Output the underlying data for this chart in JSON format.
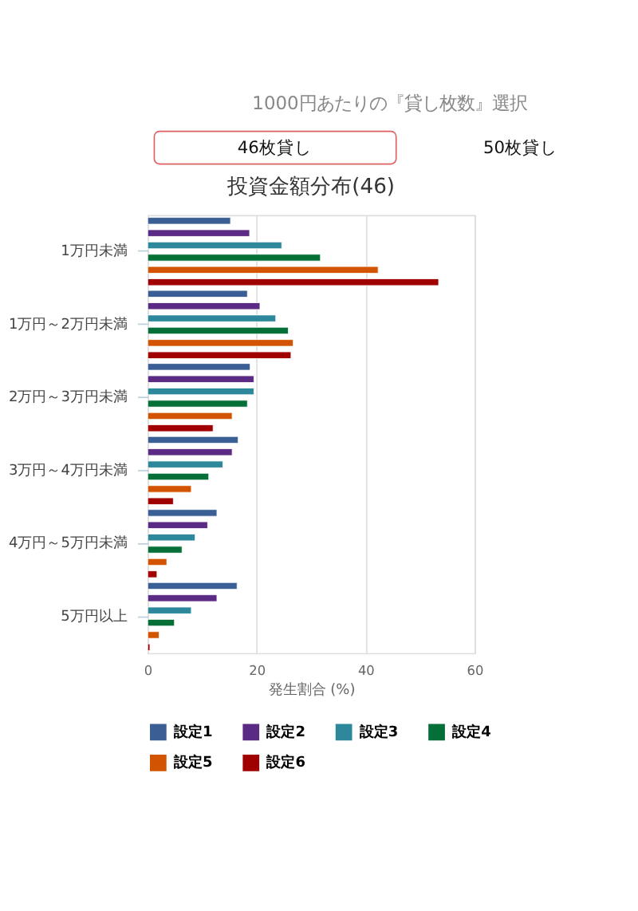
{
  "chart_data": {
    "type": "bar",
    "orientation": "horizontal",
    "title": "投資金額分布(46)",
    "xlabel": "発生割合 (%)",
    "annotations": [
      "1000円あたりの『貸し枚数』選択",
      "46枚貸し",
      "50枚貸し"
    ],
    "categories": [
      "1万円未満",
      "1万円～2万円未満",
      "2万円～3万円未満",
      "3万円～4万円未満",
      "4万円～5万円未満",
      "5万円以上"
    ],
    "series": [
      {
        "name": "設定1",
        "color": "#3a5f94",
        "values": [
          15.2,
          18.3,
          18.8,
          16.6,
          12.7,
          16.4
        ]
      },
      {
        "name": "設定2",
        "color": "#5b2a84",
        "values": [
          18.7,
          20.6,
          19.5,
          15.5,
          11.0,
          12.7
        ]
      },
      {
        "name": "設定3",
        "color": "#2e889c",
        "values": [
          24.6,
          23.5,
          19.5,
          13.8,
          8.7,
          8.0
        ]
      },
      {
        "name": "設定4",
        "color": "#046f37",
        "values": [
          31.7,
          25.8,
          18.3,
          11.2,
          6.3,
          4.9
        ]
      },
      {
        "name": "設定5",
        "color": "#d35400",
        "values": [
          42.3,
          26.7,
          15.5,
          8.0,
          3.5,
          2.1
        ]
      },
      {
        "name": "設定6",
        "color": "#a00000",
        "values": [
          53.4,
          26.3,
          12.0,
          4.7,
          1.7,
          0.4
        ]
      }
    ],
    "xlim": [
      0,
      60
    ],
    "xticks": [
      0,
      20,
      40,
      60
    ],
    "grid": "x",
    "legend": "bottom"
  }
}
